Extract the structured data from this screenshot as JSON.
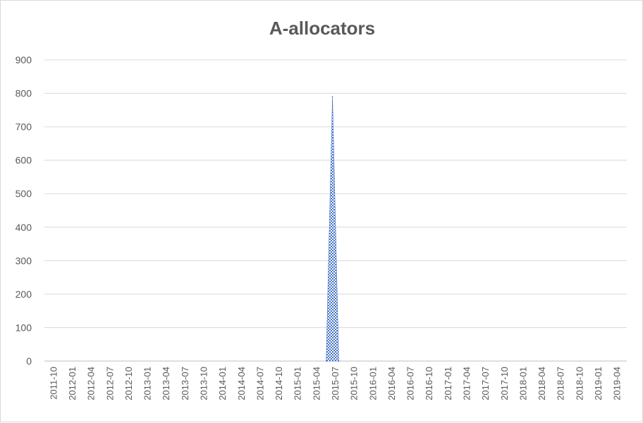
{
  "chart_data": {
    "type": "area",
    "title": "A-allocators",
    "xlabel": "",
    "ylabel": "",
    "ylim": [
      0,
      900
    ],
    "yticks": [
      0,
      100,
      200,
      300,
      400,
      500,
      600,
      700,
      800,
      900
    ],
    "grid": true,
    "legend": "none",
    "x_tick_labels": [
      "2011-10",
      "2012-01",
      "2012-04",
      "2012-07",
      "2012-10",
      "2013-01",
      "2013-04",
      "2013-07",
      "2013-10",
      "2014-01",
      "2014-04",
      "2014-07",
      "2014-10",
      "2015-01",
      "2015-04",
      "2015-07",
      "2015-10",
      "2016-01",
      "2016-04",
      "2016-07",
      "2016-10",
      "2017-01",
      "2017-04",
      "2017-07",
      "2017-10",
      "2018-01",
      "2018-04",
      "2018-07",
      "2018-10",
      "2019-01",
      "2019-04"
    ],
    "series": [
      {
        "color": "#4472c4",
        "points": [
          {
            "x": "2015-07",
            "y": 0
          },
          {
            "x": "2015-08",
            "y": 790
          },
          {
            "x": "2015-09",
            "y": 0
          }
        ]
      }
    ]
  }
}
